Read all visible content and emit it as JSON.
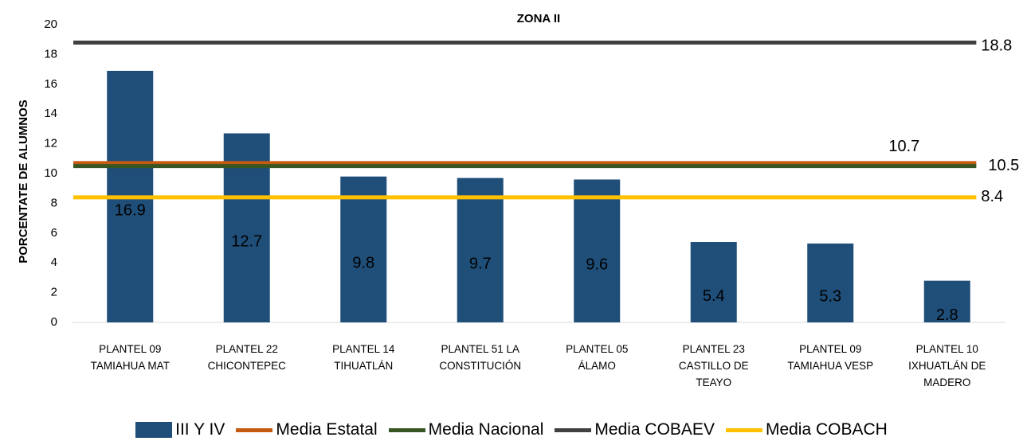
{
  "chart_data": {
    "type": "bar",
    "title": "ZONA II",
    "y_label": "PORCENTATE DE ALUMNOS",
    "categories": [
      "PLANTEL 09 TAMIAHUA MAT",
      "PLANTEL 22 CHICONTEPEC",
      "PLANTEL 14 TIHUATLÁN",
      "PLANTEL 51 LA CONSTITUCIÓN",
      "PLANTEL 05 ÁLAMO",
      "PLANTEL 23 CASTILLO DE TEAYO",
      "PLANTEL 09 TAMIAHUA VESP",
      "PLANTEL 10 IXHUATLÁN DE MADERO"
    ],
    "series": [
      {
        "name": "III Y IV",
        "type": "bar",
        "color": "#1f4e79",
        "values": [
          16.9,
          12.7,
          9.8,
          9.7,
          9.6,
          5.4,
          5.3,
          2.8
        ]
      },
      {
        "name": "Media Estatal",
        "type": "line",
        "color": "#c55a11",
        "values": [
          10.7,
          10.7,
          10.7,
          10.7,
          10.7,
          10.7,
          10.7,
          10.7
        ]
      },
      {
        "name": "Media Nacional",
        "type": "line",
        "color": "#375623",
        "values": [
          10.5,
          10.5,
          10.5,
          10.5,
          10.5,
          10.5,
          10.5,
          10.5
        ]
      },
      {
        "name": "Media COBAEV",
        "type": "line",
        "color": "#404040",
        "values": [
          18.8,
          18.8,
          18.8,
          18.8,
          18.8,
          18.8,
          18.8,
          18.8
        ]
      },
      {
        "name": "Media COBACH",
        "type": "line",
        "color": "#ffc000",
        "values": [
          8.4,
          8.4,
          8.4,
          8.4,
          8.4,
          8.4,
          8.4,
          8.4
        ]
      }
    ],
    "ylim": [
      0,
      20
    ],
    "yticks": [
      0,
      2,
      4,
      6,
      8,
      10,
      12,
      14,
      16,
      18,
      20
    ],
    "grid": false
  }
}
